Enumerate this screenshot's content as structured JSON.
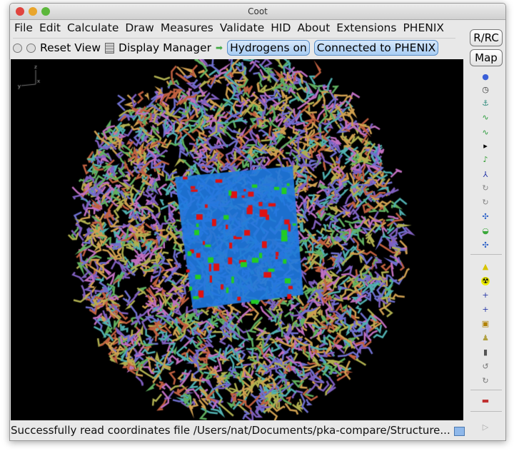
{
  "window": {
    "title": "Coot"
  },
  "menu": [
    "File",
    "Edit",
    "Calculate",
    "Draw",
    "Measures",
    "Validate",
    "HID",
    "About",
    "Extensions",
    "PHENIX"
  ],
  "toolbar": {
    "reset_view": "Reset View",
    "display_manager": "Display Manager",
    "hydrogens": "Hydrogens on",
    "phenix": "Connected to PHENIX"
  },
  "right_toolbar": {
    "rrc": "R/RC",
    "map": "Map",
    "icons": [
      "map-sphere-icon",
      "rotate-icon",
      "refine-icon",
      "rigid-body-icon",
      "regularize-icon",
      "expander-arrow-icon",
      "add-residue-icon",
      "rotamer-icon",
      "flip-peptide-icon",
      "sidechain-rotate-icon",
      "mutate-icon",
      "sidechain-icon",
      "torsion-icon",
      "radiation-small-icon",
      "radiation-icon",
      "add-atom-icon",
      "add-terminal-icon",
      "add-box-icon",
      "stamp-icon",
      "trash-icon",
      "undo-icon",
      "redo-icon",
      "flag-icon",
      "play-icon"
    ]
  },
  "axes": {
    "z": "z",
    "x": "x",
    "y": "y"
  },
  "status": "Successfully read coordinates file /Users/nat/Documents/pka-compare/Structure...",
  "colors": {
    "map": "#1e78e0",
    "difference_positive": "#22cc22",
    "difference_negative": "#dd1111",
    "background": "#000000"
  }
}
